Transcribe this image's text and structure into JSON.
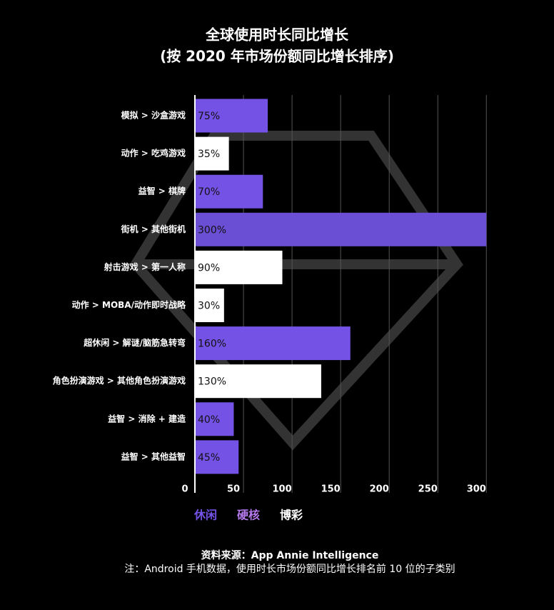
{
  "chart_data": {
    "type": "bar",
    "orientation": "horizontal",
    "title": "全球使用时长同比增长",
    "subtitle": "(按 2020 年市场份额同比增长排序)",
    "categories": [
      "模拟 > 沙盒游戏",
      "动作 > 吃鸡游戏",
      "益智 > 棋牌",
      "街机 > 其他街机",
      "射击游戏 > 第一人称",
      "动作 > MOBA/动作即时战略",
      "超休闲 > 解谜/脑筋急转弯",
      "角色扮演游戏 > 其他角色扮演游戏",
      "益智 > 消除 + 建造",
      "益智 > 其他益智"
    ],
    "series": [
      {
        "name": "休闲",
        "color": "#7452e6",
        "values": [
          75,
          null,
          70,
          null,
          null,
          null,
          160,
          null,
          40,
          45
        ],
        "value_labels": [
          "75%",
          null,
          "70%",
          null,
          null,
          null,
          "160%",
          null,
          "40%",
          "45%"
        ]
      },
      {
        "name": "硬核",
        "color": "#6a4fd4",
        "legend_color": "#b679ee",
        "values": [
          null,
          null,
          null,
          300,
          null,
          null,
          null,
          null,
          null,
          null
        ],
        "value_labels": [
          null,
          null,
          null,
          "300%",
          null,
          null,
          null,
          null,
          null,
          null
        ]
      },
      {
        "name": "博彩",
        "color": "#ffffff",
        "values": [
          null,
          35,
          null,
          null,
          90,
          30,
          null,
          130,
          null,
          null
        ],
        "value_labels": [
          null,
          "35%",
          null,
          null,
          "90%",
          "30%",
          null,
          "130%",
          null,
          null
        ]
      }
    ],
    "xlim": [
      0,
      302
    ],
    "xticks": [
      0,
      50,
      100,
      150,
      200,
      250,
      300
    ],
    "grid": true,
    "source": "资料来源：App Annie Intelligence",
    "note": "注：Android 手机数据，使用时长市场份额同比增长排名前 10 位的子类别"
  }
}
